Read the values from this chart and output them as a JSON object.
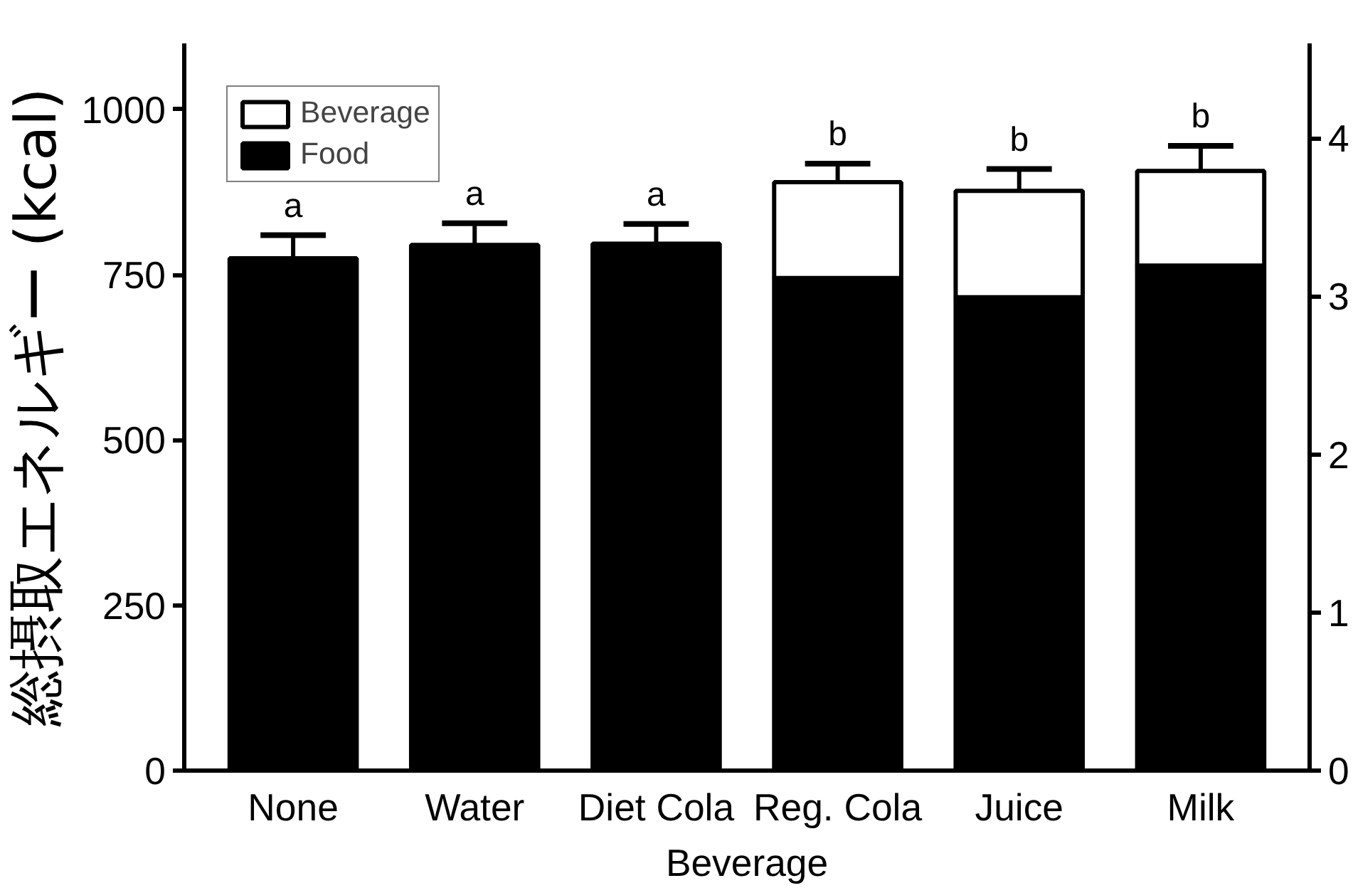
{
  "chart_data": {
    "type": "bar",
    "stacked": true,
    "xlabel": "Beverage",
    "ylabel": "総摂取エネルギー (kcal)",
    "categories": [
      "None",
      "Water",
      "Diet Cola",
      "Reg. Cola",
      "Juice",
      "Milk"
    ],
    "series": [
      {
        "name": "Food",
        "color": "#000000",
        "values": [
          775,
          795,
          797,
          745,
          716,
          764
        ]
      },
      {
        "name": "Beverage",
        "color": "#ffffff",
        "values": [
          0,
          0,
          0,
          145,
          161,
          143
        ],
        "errors": [
          [
            775,
            810
          ],
          [
            795,
            828
          ],
          [
            797,
            827
          ],
          [
            890,
            918
          ],
          [
            877,
            910
          ],
          [
            907,
            945
          ]
        ]
      }
    ],
    "ylim": [
      0,
      1100
    ],
    "yticks": [
      0,
      250,
      500,
      750,
      1000
    ],
    "y2lim": [
      0,
      4.6
    ],
    "y2ticks": [
      0,
      1,
      2,
      3,
      4
    ],
    "grid": false,
    "legend": "top left",
    "annotations": [
      "a",
      "a",
      "a",
      "b",
      "b",
      "b"
    ]
  }
}
